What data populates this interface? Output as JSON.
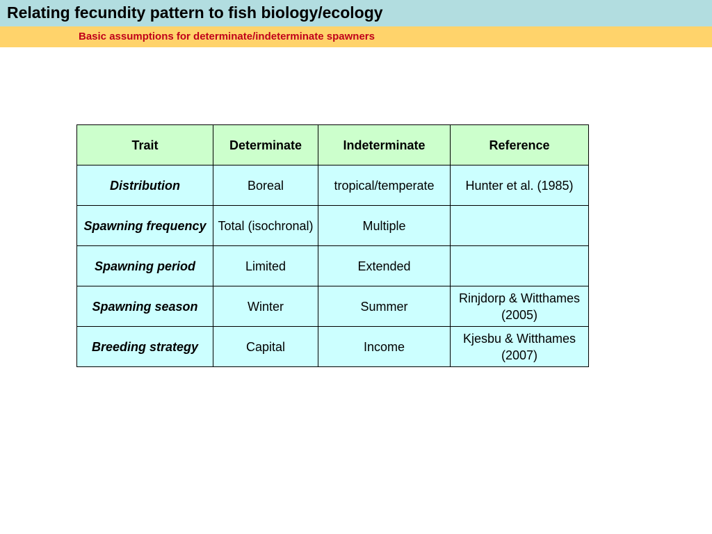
{
  "header": {
    "title": "Relating fecundity pattern to fish biology/ecology",
    "subtitle": "Basic assumptions for determinate/indeterminate spawners"
  },
  "table": {
    "columns": [
      "Trait",
      "Determinate",
      "Indeterminate",
      "Reference"
    ],
    "rows": [
      {
        "trait": "Distribution",
        "determinate": "Boreal",
        "indeterminate": "tropical/temperate",
        "reference": "Hunter et al. (1985)"
      },
      {
        "trait": "Spawning frequency",
        "determinate": "Total (isochronal)",
        "indeterminate": "Multiple",
        "reference": ""
      },
      {
        "trait": "Spawning period",
        "determinate": "Limited",
        "indeterminate": "Extended",
        "reference": ""
      },
      {
        "trait": "Spawning season",
        "determinate": "Winter",
        "indeterminate": "Summer",
        "reference": "Rinjdorp & Witthames (2005)"
      },
      {
        "trait": "Breeding strategy",
        "determinate": "Capital",
        "indeterminate": "Income",
        "reference": "Kjesbu & Witthames (2007)"
      }
    ]
  },
  "colors": {
    "title_bar": "#b2dde0",
    "subtitle_bar": "#ffd36b",
    "subtitle_text": "#c0001a",
    "header_cell": "#ccffcc",
    "body_cell": "#ccffff"
  }
}
